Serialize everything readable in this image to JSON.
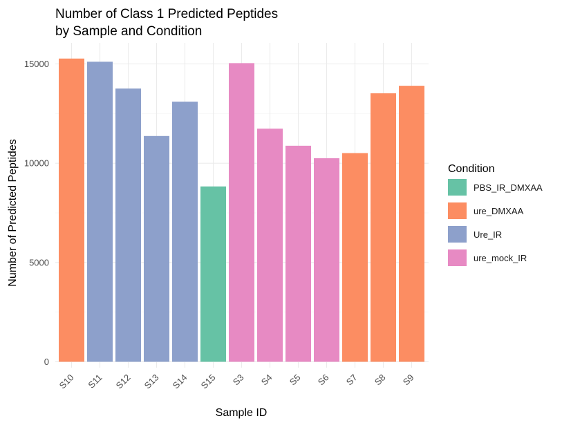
{
  "chart_data": {
    "type": "bar",
    "title_lines": [
      "Number of Class 1 Predicted Peptides",
      "by Sample and Condition"
    ],
    "xlabel": "Sample ID",
    "ylabel": "Number of Predicted Peptides",
    "categories": [
      "S10",
      "S11",
      "S12",
      "S13",
      "S14",
      "S15",
      "S3",
      "S4",
      "S5",
      "S6",
      "S7",
      "S8",
      "S9"
    ],
    "values": [
      15270,
      15110,
      13760,
      11370,
      13100,
      8830,
      15040,
      11740,
      10880,
      10250,
      10510,
      13520,
      13900
    ],
    "conditions": [
      "ure_DMXAA",
      "Ure_IR",
      "Ure_IR",
      "Ure_IR",
      "Ure_IR",
      "PBS_IR_DMXAA",
      "ure_mock_IR",
      "ure_mock_IR",
      "ure_mock_IR",
      "ure_mock_IR",
      "ure_DMXAA",
      "ure_DMXAA",
      "ure_DMXAA"
    ],
    "ylim": [
      0,
      16000
    ],
    "yticks": [
      0,
      5000,
      10000,
      15000
    ],
    "grid": true,
    "legend": {
      "title": "Condition",
      "placement": "right",
      "entries": [
        {
          "name": "PBS_IR_DMXAA",
          "color": "#66c2a5"
        },
        {
          "name": "ure_DMXAA",
          "color": "#fc8d62"
        },
        {
          "name": "Ure_IR",
          "color": "#8da0cb"
        },
        {
          "name": "ure_mock_IR",
          "color": "#e78ac3"
        }
      ]
    }
  }
}
